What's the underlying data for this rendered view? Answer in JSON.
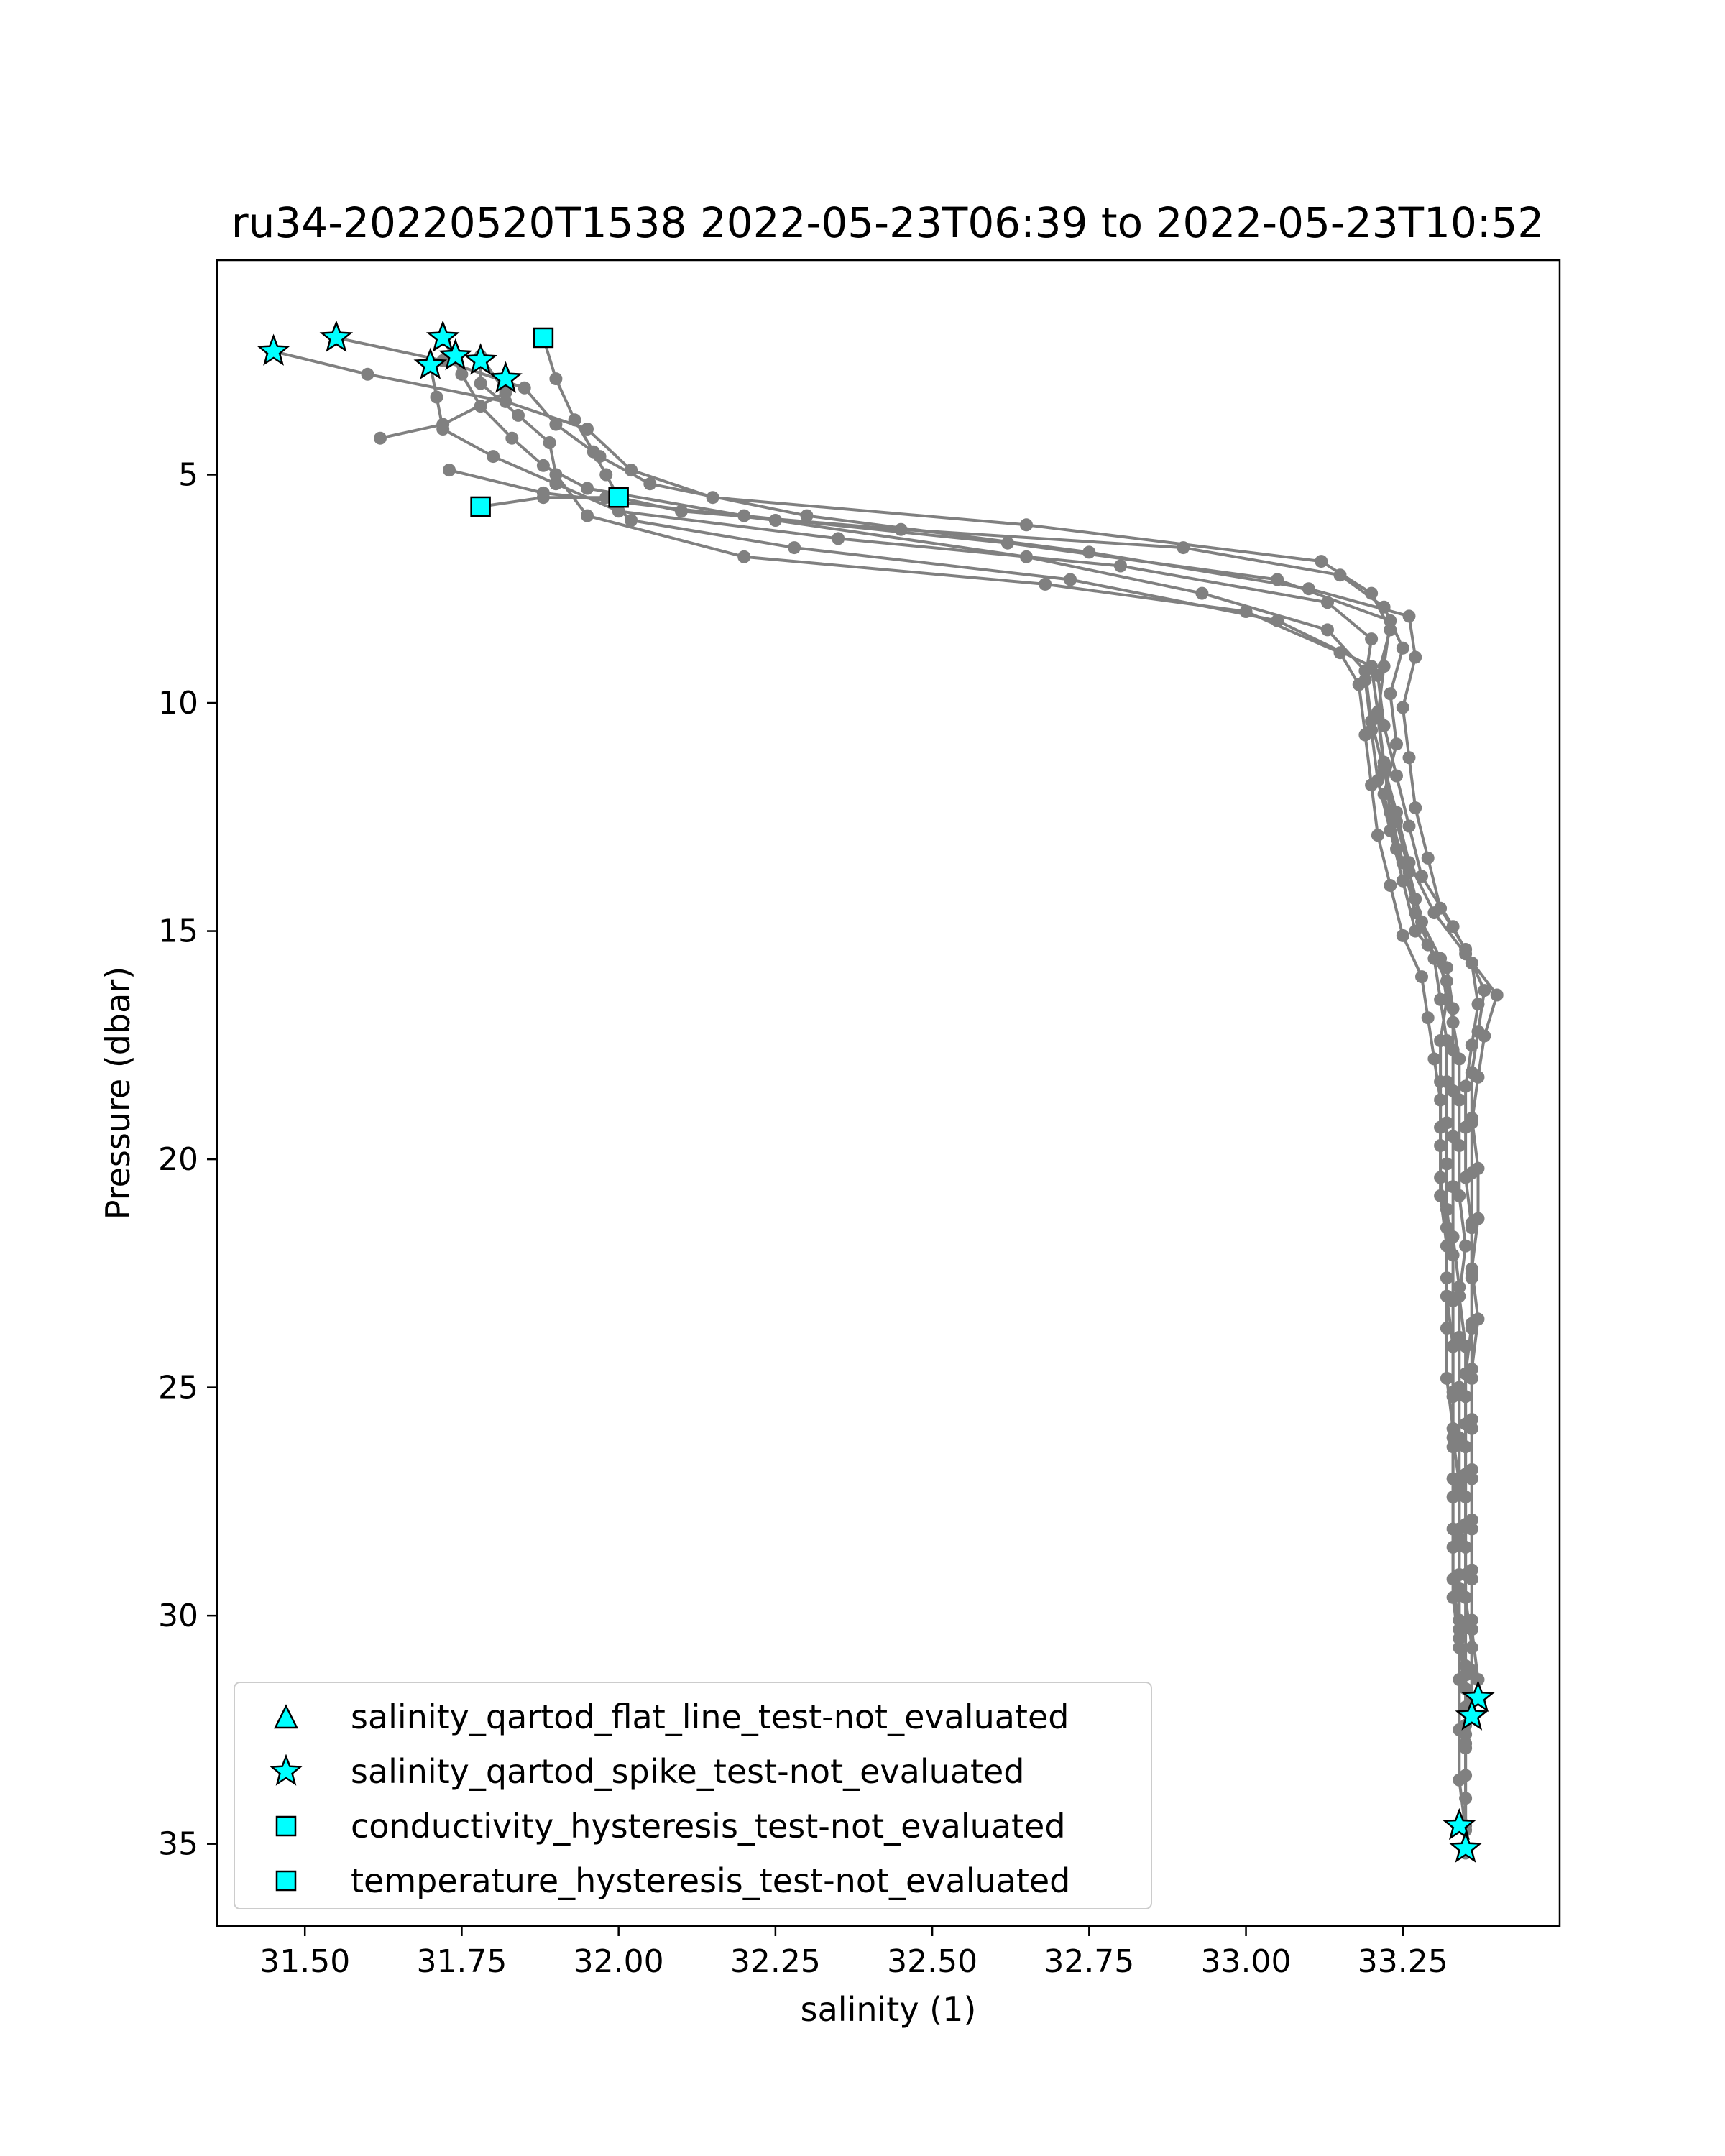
{
  "chart_data": {
    "type": "line",
    "title": "ru34-20220520T1538 2022-05-23T06:39 to 2022-05-23T10:52",
    "xlabel": "salinity (1)",
    "ylabel": "Pressure (dbar)",
    "xlim": [
      31.36,
      33.5
    ],
    "ylim": [
      36.8,
      0.3
    ],
    "y_inverted": true,
    "grid": false,
    "legend_position": "lower-left",
    "x_ticks": [
      31.5,
      31.75,
      32.0,
      32.25,
      32.5,
      32.75,
      33.0,
      33.25
    ],
    "x_tick_labels": [
      "31.50",
      "31.75",
      "32.00",
      "32.25",
      "32.50",
      "32.75",
      "33.00",
      "33.25"
    ],
    "y_ticks": [
      5,
      10,
      15,
      20,
      25,
      30,
      35
    ],
    "y_tick_labels": [
      "5",
      "10",
      "15",
      "20",
      "25",
      "30",
      "35"
    ],
    "colors": {
      "profile_line": "#808080",
      "flag_fill": "#00ffff",
      "flag_edge": "#000000"
    },
    "profiles": [
      {
        "points": [
          [
            31.88,
            2.0
          ],
          [
            31.9,
            2.9
          ],
          [
            31.93,
            3.8
          ],
          [
            31.96,
            4.5
          ],
          [
            31.98,
            5.0
          ],
          [
            32.0,
            5.5
          ],
          [
            32.1,
            5.8
          ],
          [
            32.45,
            6.2
          ],
          [
            32.9,
            6.6
          ],
          [
            33.15,
            7.2
          ],
          [
            33.22,
            7.9
          ],
          [
            33.25,
            8.8
          ],
          [
            33.23,
            9.8
          ],
          [
            33.24,
            10.9
          ],
          [
            33.22,
            12.0
          ],
          [
            33.24,
            13.2
          ],
          [
            33.27,
            14.3
          ],
          [
            33.29,
            15.3
          ],
          [
            33.32,
            16.1
          ],
          [
            33.33,
            17.0
          ],
          [
            33.34,
            17.8
          ],
          [
            33.34,
            18.7
          ],
          [
            33.34,
            19.7
          ],
          [
            33.34,
            20.8
          ],
          [
            33.35,
            21.9
          ],
          [
            33.34,
            23.0
          ],
          [
            33.35,
            24.1
          ],
          [
            33.35,
            25.2
          ],
          [
            33.35,
            26.3
          ],
          [
            33.35,
            27.4
          ],
          [
            33.35,
            28.5
          ],
          [
            33.35,
            29.6
          ],
          [
            33.36,
            30.7
          ],
          [
            33.36,
            31.8
          ],
          [
            33.35,
            32.9
          ],
          [
            33.35,
            34.0
          ],
          [
            33.35,
            35.2
          ]
        ]
      },
      {
        "points": [
          [
            31.45,
            2.3
          ],
          [
            31.6,
            2.8
          ],
          [
            31.82,
            3.4
          ],
          [
            31.95,
            4.0
          ],
          [
            32.02,
            4.9
          ],
          [
            32.15,
            5.5
          ],
          [
            32.65,
            6.1
          ],
          [
            33.12,
            6.9
          ],
          [
            33.2,
            7.6
          ],
          [
            33.23,
            8.4
          ],
          [
            33.21,
            9.4
          ],
          [
            33.22,
            10.5
          ],
          [
            33.24,
            11.6
          ],
          [
            33.26,
            12.7
          ],
          [
            33.28,
            13.8
          ],
          [
            33.33,
            14.9
          ],
          [
            33.36,
            15.7
          ],
          [
            33.37,
            16.6
          ],
          [
            33.36,
            17.5
          ],
          [
            33.35,
            18.4
          ],
          [
            33.35,
            19.3
          ],
          [
            33.35,
            20.4
          ],
          [
            33.36,
            21.5
          ],
          [
            33.36,
            22.6
          ],
          [
            33.36,
            23.7
          ],
          [
            33.36,
            24.8
          ],
          [
            33.36,
            25.9
          ],
          [
            33.36,
            27.0
          ],
          [
            33.36,
            28.1
          ],
          [
            33.36,
            29.2
          ],
          [
            33.36,
            30.3
          ],
          [
            33.37,
            31.4
          ],
          [
            33.37,
            31.8
          ]
        ]
      },
      {
        "points": [
          [
            31.55,
            2.0
          ],
          [
            31.72,
            2.5
          ],
          [
            31.85,
            3.1
          ],
          [
            31.9,
            3.9
          ],
          [
            31.97,
            4.6
          ],
          [
            32.05,
            5.2
          ],
          [
            32.3,
            5.9
          ],
          [
            32.75,
            6.7
          ],
          [
            33.1,
            7.5
          ],
          [
            33.26,
            8.1
          ],
          [
            33.27,
            9.0
          ],
          [
            33.25,
            10.1
          ],
          [
            33.26,
            11.2
          ],
          [
            33.27,
            12.3
          ],
          [
            33.29,
            13.4
          ],
          [
            33.31,
            14.5
          ],
          [
            33.35,
            15.4
          ],
          [
            33.38,
            16.3
          ],
          [
            33.37,
            17.2
          ],
          [
            33.36,
            18.1
          ],
          [
            33.36,
            19.1
          ],
          [
            33.37,
            20.2
          ],
          [
            33.37,
            21.3
          ],
          [
            33.36,
            22.4
          ],
          [
            33.37,
            23.5
          ],
          [
            33.36,
            24.6
          ],
          [
            33.36,
            25.7
          ],
          [
            33.36,
            26.8
          ],
          [
            33.36,
            27.9
          ],
          [
            33.36,
            29.0
          ],
          [
            33.36,
            30.1
          ],
          [
            33.36,
            31.2
          ],
          [
            33.36,
            32.2
          ]
        ]
      },
      {
        "points": [
          [
            31.72,
            2.0
          ],
          [
            31.75,
            2.8
          ],
          [
            31.78,
            3.5
          ],
          [
            31.83,
            4.2
          ],
          [
            31.88,
            4.8
          ],
          [
            31.95,
            5.3
          ],
          [
            32.2,
            5.9
          ],
          [
            32.62,
            6.5
          ],
          [
            33.05,
            7.3
          ],
          [
            33.23,
            8.2
          ],
          [
            33.22,
            9.2
          ],
          [
            33.21,
            10.3
          ],
          [
            33.22,
            11.4
          ],
          [
            33.24,
            12.4
          ],
          [
            33.26,
            13.5
          ],
          [
            33.3,
            14.6
          ],
          [
            33.35,
            15.5
          ],
          [
            33.4,
            16.4
          ],
          [
            33.38,
            17.3
          ],
          [
            33.37,
            18.2
          ],
          [
            33.36,
            19.2
          ],
          [
            33.36,
            20.3
          ],
          [
            33.36,
            21.4
          ],
          [
            33.36,
            22.5
          ],
          [
            33.36,
            23.6
          ],
          [
            33.35,
            24.7
          ],
          [
            33.35,
            25.8
          ],
          [
            33.35,
            26.9
          ],
          [
            33.35,
            28.0
          ],
          [
            33.35,
            29.1
          ],
          [
            33.35,
            30.2
          ],
          [
            33.35,
            31.3
          ],
          [
            33.35,
            32.4
          ],
          [
            33.35,
            33.5
          ],
          [
            33.35,
            34.6
          ]
        ]
      },
      {
        "points": [
          [
            31.7,
            2.6
          ],
          [
            31.71,
            3.3
          ],
          [
            31.72,
            4.0
          ],
          [
            31.8,
            4.6
          ],
          [
            31.9,
            5.2
          ],
          [
            32.0,
            5.8
          ],
          [
            32.35,
            6.4
          ],
          [
            32.8,
            7.0
          ],
          [
            33.13,
            7.8
          ],
          [
            33.2,
            8.6
          ],
          [
            33.19,
            9.5
          ],
          [
            33.2,
            10.6
          ],
          [
            33.21,
            11.7
          ],
          [
            33.23,
            12.8
          ],
          [
            33.25,
            13.9
          ],
          [
            33.27,
            15.0
          ],
          [
            33.32,
            15.8
          ],
          [
            33.33,
            16.7
          ],
          [
            33.33,
            17.6
          ],
          [
            33.33,
            18.5
          ],
          [
            33.33,
            19.5
          ],
          [
            33.33,
            20.6
          ],
          [
            33.33,
            21.7
          ],
          [
            33.34,
            22.8
          ],
          [
            33.34,
            23.9
          ],
          [
            33.34,
            25.0
          ],
          [
            33.34,
            26.1
          ],
          [
            33.34,
            27.2
          ],
          [
            33.34,
            28.3
          ],
          [
            33.34,
            29.4
          ],
          [
            33.34,
            30.5
          ],
          [
            33.35,
            31.6
          ],
          [
            33.35,
            32.6
          ]
        ]
      },
      {
        "points": [
          [
            31.62,
            4.2
          ],
          [
            31.72,
            3.9
          ],
          [
            31.82,
            3.2
          ],
          [
            31.78,
            2.4
          ],
          [
            31.78,
            3.0
          ],
          [
            31.84,
            3.7
          ],
          [
            31.89,
            4.3
          ],
          [
            31.9,
            5.0
          ],
          [
            31.95,
            5.9
          ],
          [
            32.2,
            6.8
          ],
          [
            32.68,
            7.4
          ],
          [
            33.0,
            8.0
          ],
          [
            33.15,
            8.9
          ],
          [
            33.18,
            9.6
          ],
          [
            33.19,
            10.7
          ],
          [
            33.2,
            11.8
          ],
          [
            33.21,
            12.9
          ],
          [
            33.23,
            14.0
          ],
          [
            33.25,
            15.1
          ],
          [
            33.28,
            16.0
          ],
          [
            33.29,
            16.9
          ],
          [
            33.3,
            17.8
          ],
          [
            33.31,
            18.7
          ],
          [
            33.31,
            19.7
          ],
          [
            33.31,
            20.8
          ],
          [
            33.32,
            21.9
          ],
          [
            33.32,
            23.0
          ],
          [
            33.33,
            24.1
          ],
          [
            33.33,
            25.2
          ],
          [
            33.33,
            26.3
          ],
          [
            33.33,
            27.4
          ],
          [
            33.33,
            28.5
          ],
          [
            33.33,
            29.6
          ],
          [
            33.34,
            30.7
          ]
        ]
      },
      {
        "points": [
          [
            31.78,
            5.7
          ],
          [
            31.88,
            5.5
          ],
          [
            31.98,
            5.5
          ],
          [
            32.02,
            6.0
          ],
          [
            32.28,
            6.6
          ],
          [
            32.72,
            7.3
          ],
          [
            33.05,
            8.2
          ],
          [
            33.2,
            9.2
          ],
          [
            33.21,
            10.2
          ],
          [
            33.22,
            11.3
          ],
          [
            33.23,
            12.4
          ],
          [
            33.25,
            13.5
          ],
          [
            33.27,
            14.6
          ],
          [
            33.3,
            15.6
          ],
          [
            33.31,
            16.5
          ],
          [
            33.32,
            17.4
          ],
          [
            33.32,
            18.3
          ],
          [
            33.32,
            19.2
          ],
          [
            33.32,
            20.1
          ],
          [
            33.32,
            21.1
          ],
          [
            33.33,
            22.1
          ],
          [
            33.33,
            23.1
          ],
          [
            33.33,
            24.1
          ],
          [
            33.33,
            25.1
          ],
          [
            33.33,
            26.1
          ],
          [
            33.34,
            27.1
          ],
          [
            33.34,
            28.1
          ],
          [
            33.34,
            29.1
          ],
          [
            33.34,
            30.1
          ],
          [
            33.35,
            31.1
          ],
          [
            33.35,
            32.0
          ],
          [
            33.35,
            32.8
          ]
        ]
      },
      {
        "points": [
          [
            31.73,
            4.9
          ],
          [
            31.88,
            5.4
          ],
          [
            32.25,
            6.0
          ],
          [
            32.65,
            6.8
          ],
          [
            32.93,
            7.6
          ],
          [
            33.13,
            8.4
          ],
          [
            33.19,
            9.3
          ],
          [
            33.2,
            10.4
          ],
          [
            33.22,
            11.5
          ],
          [
            33.24,
            12.6
          ],
          [
            33.26,
            13.7
          ],
          [
            33.28,
            14.8
          ],
          [
            33.31,
            15.6
          ],
          [
            33.32,
            16.5
          ],
          [
            33.31,
            17.4
          ],
          [
            33.31,
            18.3
          ],
          [
            33.31,
            19.3
          ],
          [
            33.31,
            20.4
          ],
          [
            33.32,
            21.5
          ],
          [
            33.32,
            22.6
          ],
          [
            33.32,
            23.7
          ],
          [
            33.32,
            24.8
          ],
          [
            33.33,
            25.9
          ],
          [
            33.33,
            27.0
          ],
          [
            33.33,
            28.1
          ],
          [
            33.33,
            29.2
          ],
          [
            33.34,
            30.3
          ],
          [
            33.34,
            31.4
          ],
          [
            33.34,
            32.5
          ],
          [
            33.34,
            33.6
          ],
          [
            33.35,
            34.7
          ],
          [
            33.35,
            35.2
          ]
        ]
      }
    ],
    "flags": [
      {
        "marker": "star",
        "points": [
          [
            31.45,
            2.3
          ],
          [
            31.55,
            2.0
          ],
          [
            31.72,
            2.0
          ],
          [
            31.74,
            2.4
          ],
          [
            31.7,
            2.6
          ],
          [
            31.78,
            2.5
          ],
          [
            31.82,
            2.9
          ],
          [
            33.37,
            31.8
          ],
          [
            33.36,
            32.2
          ],
          [
            33.34,
            34.6
          ],
          [
            33.35,
            35.1
          ]
        ]
      },
      {
        "marker": "square",
        "points": [
          [
            31.88,
            2.0
          ],
          [
            32.0,
            5.5
          ],
          [
            31.78,
            5.7
          ]
        ]
      }
    ],
    "legend": [
      {
        "marker": "triangle",
        "label": "salinity_qartod_flat_line_test-not_evaluated"
      },
      {
        "marker": "star",
        "label": "salinity_qartod_spike_test-not_evaluated"
      },
      {
        "marker": "square",
        "label": "conductivity_hysteresis_test-not_evaluated"
      },
      {
        "marker": "square",
        "label": "temperature_hysteresis_test-not_evaluated"
      }
    ]
  }
}
